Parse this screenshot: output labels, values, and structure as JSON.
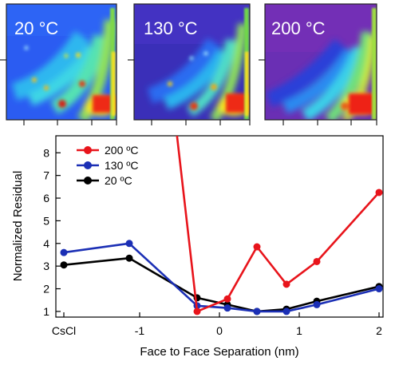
{
  "panels": [
    {
      "label": "20 °C",
      "style": "20"
    },
    {
      "label": "130 °C",
      "style": "130"
    },
    {
      "label": "200 °C",
      "style": "200"
    }
  ],
  "colors": {
    "c200": "#e8141b",
    "c130": "#1b2fb5",
    "c20": "#000000"
  },
  "chart_data": {
    "type": "line",
    "xlabel": "Face to Face Separation (nm)",
    "ylabel": "Normalized Residual",
    "xlim": [
      -2.05,
      2.05
    ],
    "ylim": [
      0.75,
      8.75
    ],
    "xticks": [
      {
        "v": -1.95,
        "label": "CsCl"
      },
      {
        "v": -1,
        "label": "-1"
      },
      {
        "v": 0,
        "label": "0"
      },
      {
        "v": 1,
        "label": "1"
      },
      {
        "v": 2,
        "label": "2"
      }
    ],
    "yticks": [
      1,
      2,
      3,
      4,
      5,
      6,
      7,
      8
    ],
    "legend_position": "top-left",
    "series": [
      {
        "name": "200 ºC",
        "color": "#e8141b",
        "x": [
          -0.54,
          -0.28,
          0.1,
          0.47,
          0.84,
          1.22,
          2.0
        ],
        "y": [
          9.0,
          1.0,
          1.55,
          3.85,
          2.2,
          3.2,
          6.25
        ],
        "markers": [
          false,
          true,
          true,
          true,
          true,
          true,
          true
        ]
      },
      {
        "name": "130 ºC",
        "color": "#1b2fb5",
        "x": [
          -1.95,
          -1.13,
          -0.28,
          0.1,
          0.47,
          0.84,
          1.22,
          2.0
        ],
        "y": [
          3.6,
          4.0,
          1.25,
          1.15,
          1.0,
          1.0,
          1.3,
          2.0
        ]
      },
      {
        "name": "20 ºC",
        "color": "#000000",
        "x": [
          -1.95,
          -1.13,
          -0.28,
          0.1,
          0.47,
          0.84,
          1.22,
          2.0
        ],
        "y": [
          3.05,
          3.35,
          1.6,
          1.3,
          1.0,
          1.1,
          1.45,
          2.1
        ]
      }
    ]
  }
}
